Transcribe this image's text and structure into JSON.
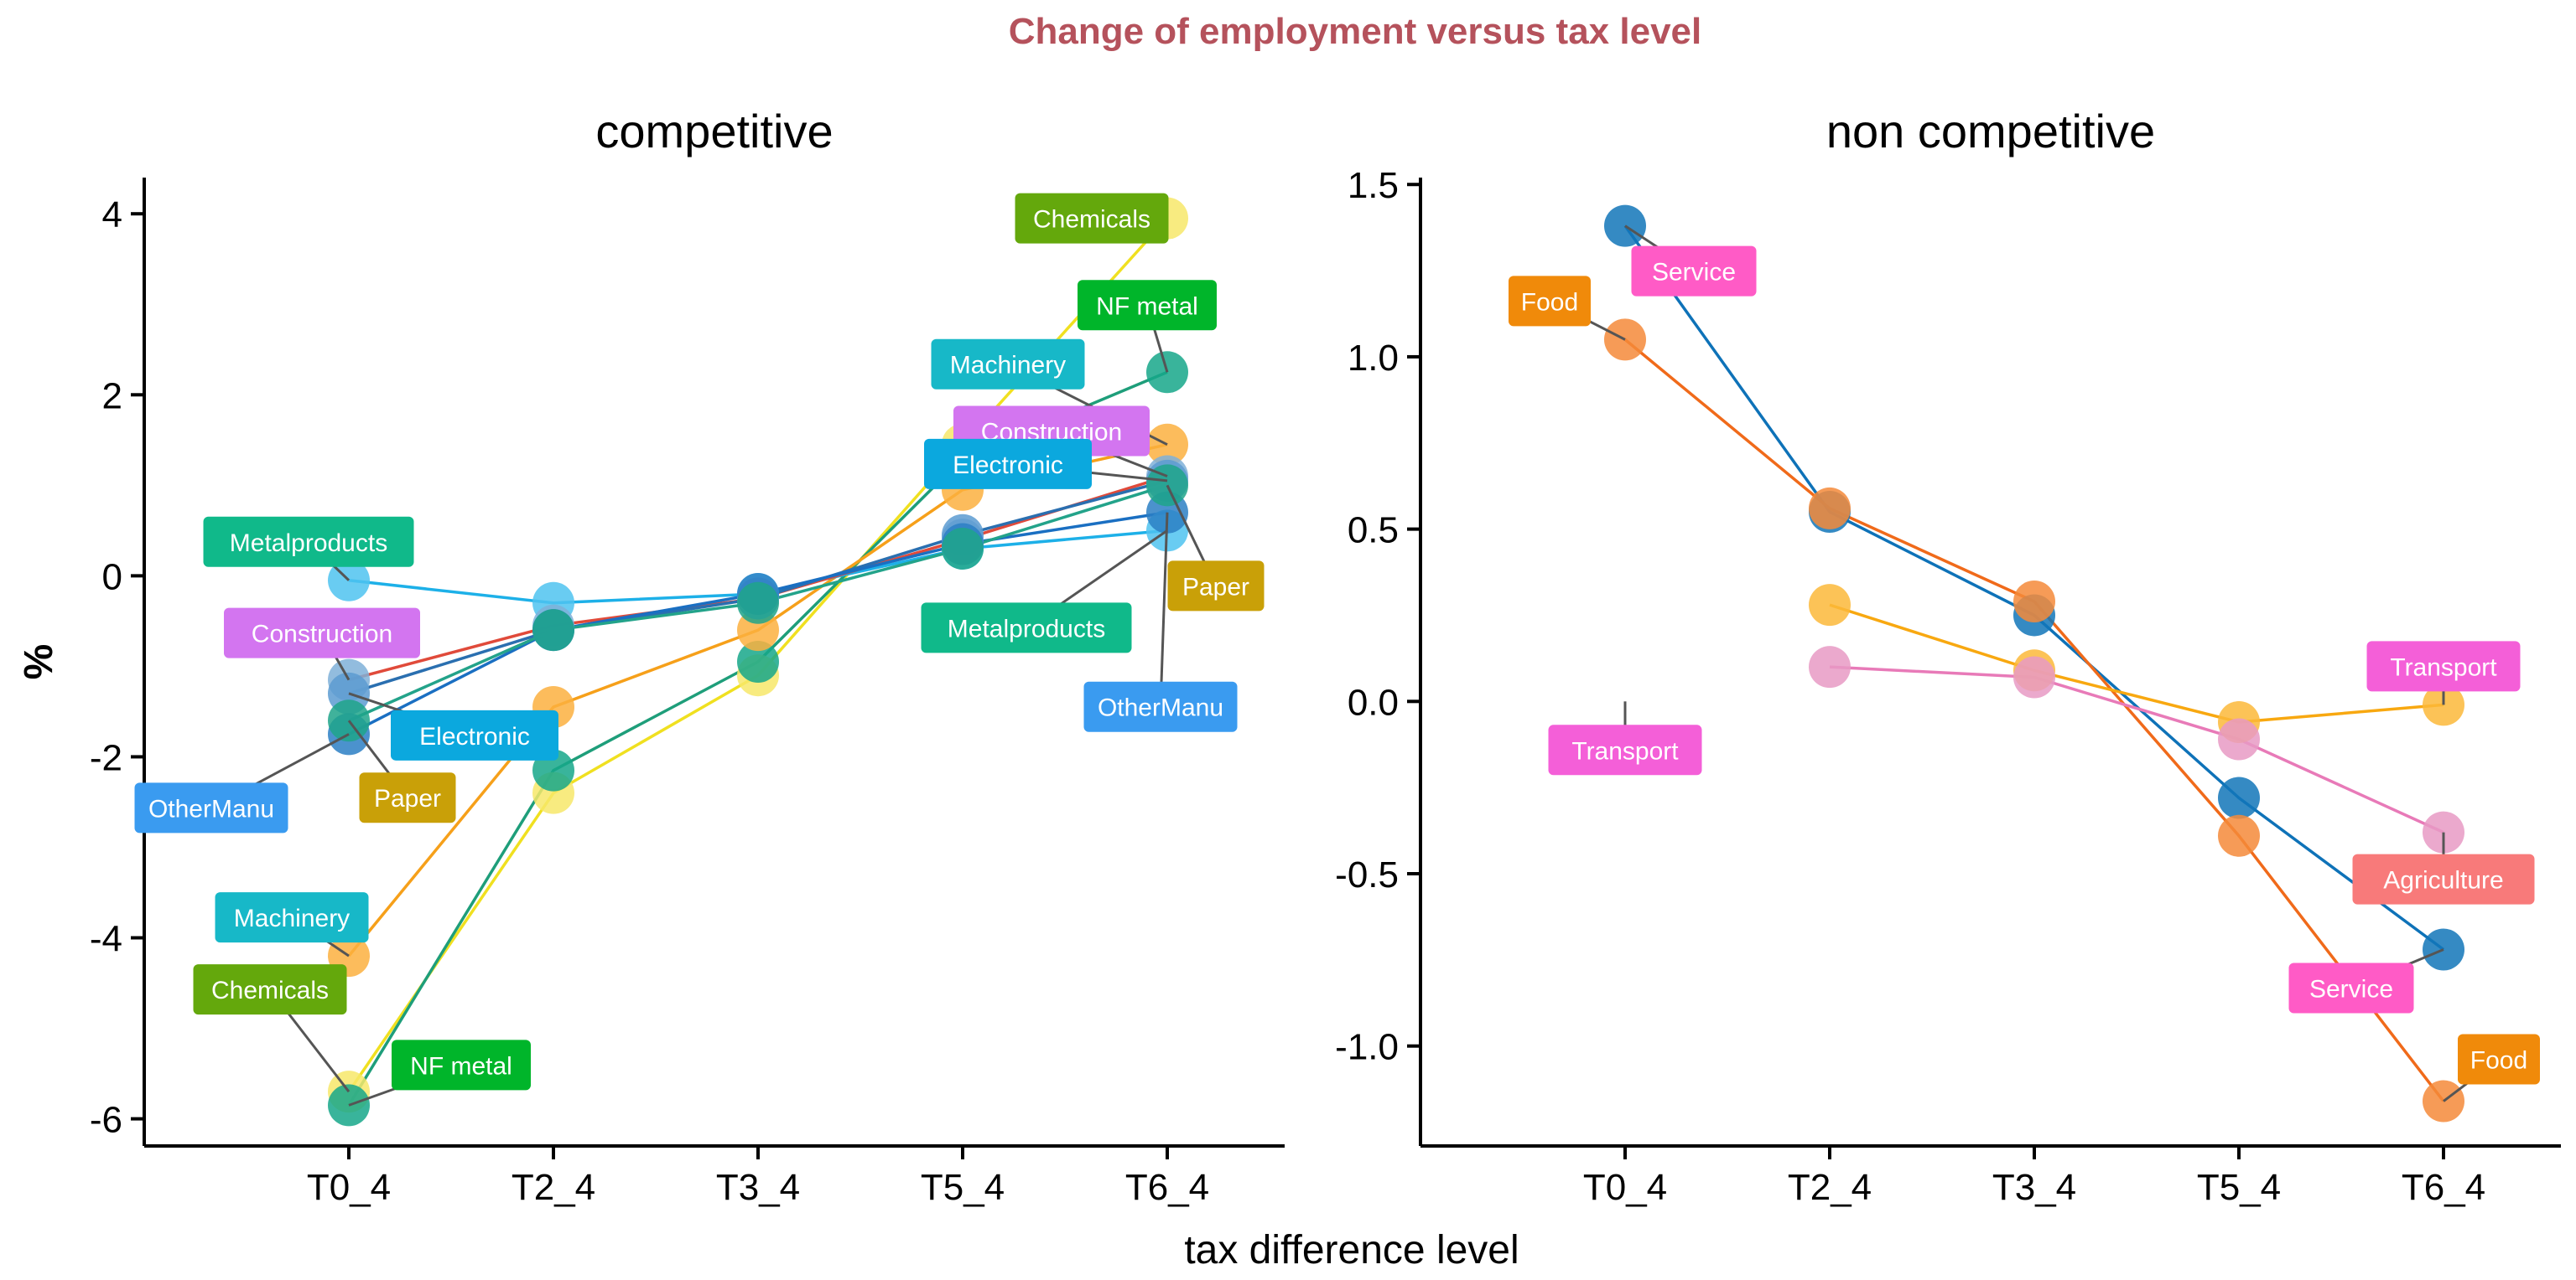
{
  "chart_data": {
    "title": "Change of employment versus tax level",
    "xlabel": "tax difference level",
    "ylabel": "%",
    "categories": [
      "T0_4",
      "T2_4",
      "T3_4",
      "T5_4",
      "T6_4"
    ],
    "panels": [
      {
        "title": "competitive",
        "type": "line",
        "ylim": [
          -6.3,
          4.4
        ],
        "yticks": [
          -6,
          -4,
          -2,
          0,
          2,
          4
        ],
        "ytick_labels": [
          "-6",
          "-4",
          "-2",
          "0",
          "2",
          "4"
        ],
        "series": [
          {
            "name": "Chemicals",
            "color": "#64A80C",
            "line_color": "#F0E020",
            "point_color": "#F7E76A",
            "values": [
              -5.7,
              -2.4,
              -1.1,
              1.45,
              3.95
            ]
          },
          {
            "name": "NF metal",
            "color": "#00B52A",
            "line_color": "#1E9E7A",
            "point_color": "#16A78A",
            "values": [
              -5.85,
              -2.15,
              -0.95,
              1.3,
              2.25
            ]
          },
          {
            "name": "Machinery",
            "color": "#17B8C8",
            "line_color": "#F6A01A",
            "point_color": "#FBB040",
            "values": [
              -4.2,
              -1.45,
              -0.6,
              0.95,
              1.45
            ]
          },
          {
            "name": "Metalproducts",
            "color": "#10B98A",
            "line_color": "#1DB0E8",
            "point_color": "#4FC3F0",
            "values": [
              -0.05,
              -0.3,
              -0.2,
              0.3,
              0.5
            ]
          },
          {
            "name": "Construction",
            "color": "#D375F0",
            "line_color": "#E04A3A",
            "point_color": "#7FB0D8",
            "values": [
              -1.15,
              -0.55,
              -0.25,
              0.4,
              1.1
            ]
          },
          {
            "name": "Electronic",
            "color": "#0BA8DE",
            "line_color": "#2A6FB0",
            "point_color": "#5C9BD1",
            "values": [
              -1.3,
              -0.6,
              -0.25,
              0.45,
              1.05
            ]
          },
          {
            "name": "OtherManu",
            "color": "#3A9BF0",
            "line_color": "#1A6FC2",
            "point_color": "#2C7FC4",
            "values": [
              -1.75,
              -0.6,
              -0.2,
              0.35,
              0.7
            ]
          },
          {
            "name": "Paper",
            "color": "#C9A008",
            "line_color": "#23A38A",
            "point_color": "#1FA58A",
            "values": [
              -1.6,
              -0.6,
              -0.3,
              0.3,
              1.0
            ]
          }
        ],
        "labels": [
          {
            "series": "Chemicals",
            "text": "Chemicals",
            "at": 4
          },
          {
            "series": "NF metal",
            "text": "NF metal",
            "at": 4
          },
          {
            "series": "Machinery",
            "text": "Machinery",
            "at": 4
          },
          {
            "series": "Construction",
            "text": "Construction",
            "at": 4
          },
          {
            "series": "Electronic",
            "text": "Electronic",
            "at": 4
          },
          {
            "series": "Metalproducts",
            "text": "Metalproducts",
            "at": 4
          },
          {
            "series": "Paper",
            "text": "Paper",
            "at": 4
          },
          {
            "series": "OtherManu",
            "text": "OtherManu",
            "at": 4
          },
          {
            "series": "Metalproducts",
            "text": "Metalproducts",
            "at": 0
          },
          {
            "series": "Construction",
            "text": "Construction",
            "at": 0
          },
          {
            "series": "Electronic",
            "text": "Electronic",
            "at": 0
          },
          {
            "series": "OtherManu",
            "text": "OtherManu",
            "at": 0
          },
          {
            "series": "Paper",
            "text": "Paper",
            "at": 0
          },
          {
            "series": "Machinery",
            "text": "Machinery",
            "at": 0
          },
          {
            "series": "Chemicals",
            "text": "Chemicals",
            "at": 0
          },
          {
            "series": "NF metal",
            "text": "NF metal",
            "at": 0
          }
        ]
      },
      {
        "title": "non competitive",
        "type": "line",
        "ylim": [
          -1.29,
          1.52
        ],
        "yticks": [
          -1.0,
          -0.5,
          0.0,
          0.5,
          1.0,
          1.5
        ],
        "ytick_labels": [
          "-1.0",
          "-0.5",
          "0.0",
          "0.5",
          "1.0",
          "1.5"
        ],
        "series": [
          {
            "name": "Service",
            "color": "#FF5BC6",
            "line_color": "#0E72B8",
            "point_color": "#1276B8",
            "values": [
              1.38,
              0.55,
              0.25,
              -0.28,
              -0.72
            ]
          },
          {
            "name": "Food",
            "color": "#F08A0A",
            "line_color": "#F06A1A",
            "point_color": "#F58A3A",
            "values": [
              1.05,
              0.56,
              0.29,
              -0.39,
              -1.16
            ]
          },
          {
            "name": "Transport",
            "color": "#F45FD8",
            "line_color": "#F8A810",
            "point_color": "#FBB83A",
            "values": [
              null,
              0.28,
              0.09,
              -0.06,
              -0.01
            ]
          },
          {
            "name": "Agriculture",
            "color": "#F87A7A",
            "line_color": "#E87AB8",
            "point_color": "#E89AC4",
            "values": [
              null,
              0.1,
              0.07,
              -0.11,
              -0.38
            ]
          }
        ],
        "labels": [
          {
            "series": "Food",
            "text": "Food",
            "at": 0
          },
          {
            "series": "Service",
            "text": "Service",
            "at": 0
          },
          {
            "series": "Transport",
            "text": "Transport",
            "at": 0
          },
          {
            "series": "Transport",
            "text": "Transport",
            "at": 4
          },
          {
            "series": "Agriculture",
            "text": "Agriculture",
            "at": 4
          },
          {
            "series": "Service",
            "text": "Service",
            "at": 4
          },
          {
            "series": "Food",
            "text": "Food",
            "at": 4
          }
        ]
      }
    ]
  }
}
